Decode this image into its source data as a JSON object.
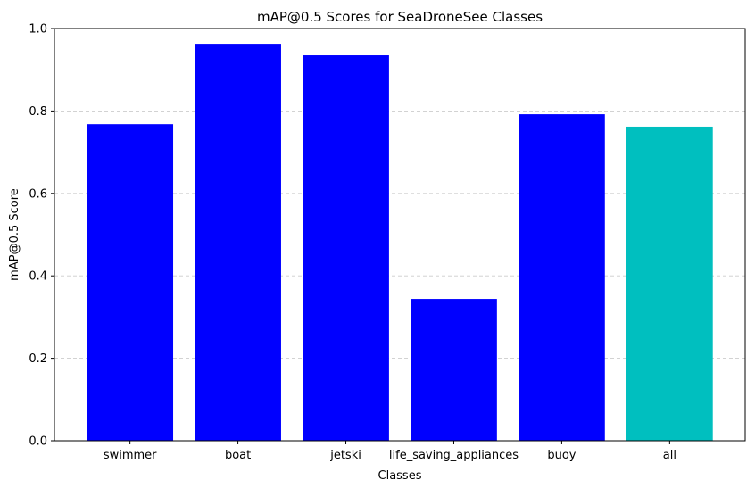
{
  "chart_data": {
    "type": "bar",
    "title": "mAP@0.5 Scores for SeaDroneSee Classes",
    "xlabel": "Classes",
    "ylabel": "mAP@0.5 Score",
    "categories": [
      "swimmer",
      "boat",
      "jetski",
      "life_saving_appliances",
      "buoy",
      "all"
    ],
    "values": [
      0.768,
      0.963,
      0.935,
      0.344,
      0.792,
      0.762
    ],
    "colors": [
      "#0000ff",
      "#0000ff",
      "#0000ff",
      "#0000ff",
      "#0000ff",
      "#00bfbf"
    ],
    "ylim": [
      0,
      1.0
    ],
    "yticks": [
      0.0,
      0.2,
      0.4,
      0.6,
      0.8,
      1.0
    ],
    "ytick_labels": [
      "0.0",
      "0.2",
      "0.4",
      "0.6",
      "0.8",
      "1.0"
    ],
    "grid": "y-axis dashed",
    "legend": "none"
  }
}
